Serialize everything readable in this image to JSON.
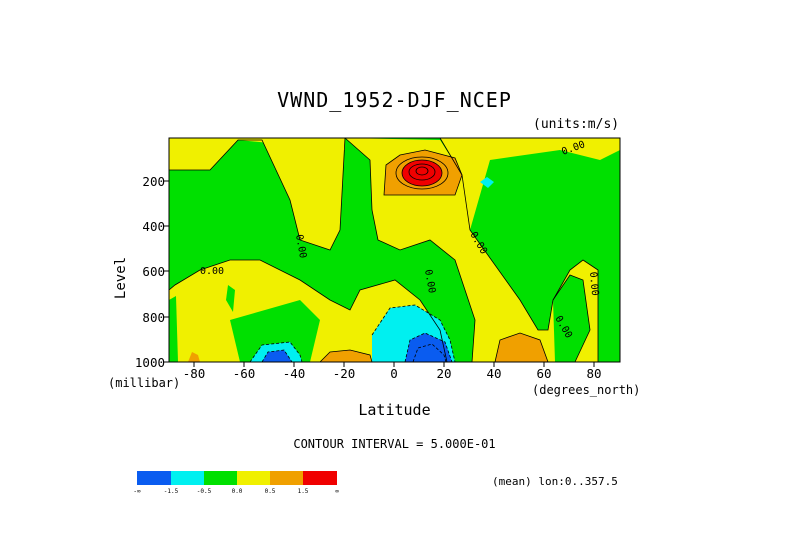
{
  "chart_data": {
    "type": "heatmap",
    "title": "VWND_1952-DJF_NCEP",
    "units_label": "(units:m/s)",
    "xlabel": "Latitude",
    "ylabel": "Level",
    "x_unit_label": "(degrees_north)",
    "y_unit_label": "(millibar)",
    "xlim": [
      -90,
      90
    ],
    "ylim": [
      1000,
      50
    ],
    "x_ticks": [
      "-80",
      "-60",
      "-40",
      "-20",
      "0",
      "20",
      "40",
      "60",
      "80"
    ],
    "y_ticks": [
      "200",
      "400",
      "600",
      "800",
      "1000"
    ],
    "contour_interval_text": "CONTOUR INTERVAL = 5.000E-01",
    "contour_labels": [
      "0.00",
      "0.00",
      "0.00",
      "0.00",
      "0.00",
      "0.00",
      "0.00"
    ],
    "mean_text": "(mean) lon:0..357.5",
    "colorbar": {
      "colors": [
        "#0a5cf0",
        "#00f0f0",
        "#00e000",
        "#f0f000",
        "#f0a000",
        "#f00000"
      ],
      "labels": [
        "-∞",
        "-1.5",
        "-0.5",
        "0.0",
        "0.5",
        "1.5",
        "∞"
      ]
    }
  },
  "colors": {
    "max": "#f00000",
    "strong_pos": "#f0a000",
    "pos": "#f0f000",
    "near_zero": "#00e000",
    "neg": "#00f0f0",
    "strong_neg": "#0a5cf0"
  }
}
